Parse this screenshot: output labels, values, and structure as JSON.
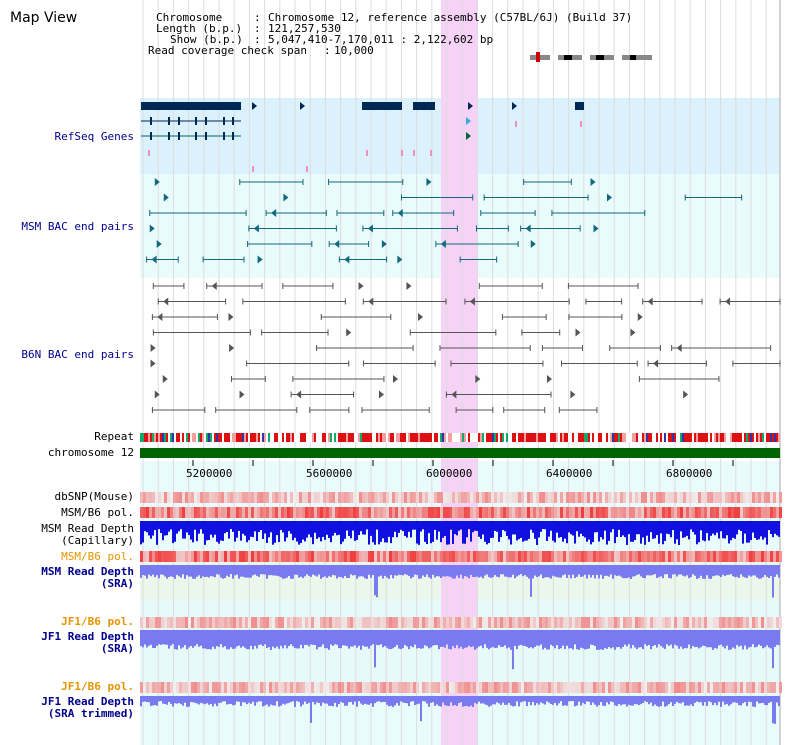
{
  "header": {
    "title": "Map View",
    "chromosome_key": "Chromosome",
    "chromosome_value": "Chromosome 12, reference assembly (C57BL/6J) (Build 37)",
    "length_key": "Length (b.p.)",
    "length_value": "121,257,530",
    "show_key": "Show (b.p.)",
    "show_value": "5,047,410-7,170,011 : 2,122,602 bp",
    "coverage_key": "Read coverage check span",
    "coverage_value": "10,000"
  },
  "tracks": {
    "refseq": "RefSeq Genes",
    "msm_bac": "MSM BAC end pairs",
    "b6n_bac": "B6N BAC end pairs",
    "repeat": "Repeat",
    "chromosome": "chromosome 12",
    "dbsnp": "dbSNP(Mouse)",
    "msm_b6_pol": "MSM/B6 pol.",
    "msm_depth_cap_1": "MSM Read Depth",
    "msm_depth_cap_2": "(Capillary)",
    "msm_b6_pol_2": "MSM/B6 pol.",
    "msm_depth_sra_1": "MSM Read Depth",
    "msm_depth_sra_2": "(SRA)",
    "jf1_b6_pol": "JF1/B6 pol.",
    "jf1_depth_1": "JF1 Read Depth",
    "jf1_depth_2": "(SRA)",
    "jf1_b6_pol_2": "JF1/B6 pol.",
    "jf1_trim_1": "JF1 Read Depth",
    "jf1_trim_2": "(SRA trimmed)"
  },
  "axis": {
    "ticks": [
      "5200000",
      "5600000",
      "6000000",
      "6400000",
      "6800000"
    ]
  },
  "colors": {
    "label_blue": "#00008b",
    "label_orange": "#e69500",
    "refseq_bg": "#dbf1fb",
    "bac_bg": "#e9fbfb",
    "highlight": "#f7d2f7",
    "chromosome_bar": "#006400",
    "refseq_gene": "#002855",
    "msm_bac": "#10697f",
    "b6n_bac": "#555555",
    "depth_blue": "#1010e0",
    "depth_light": "#7a7af0"
  }
}
